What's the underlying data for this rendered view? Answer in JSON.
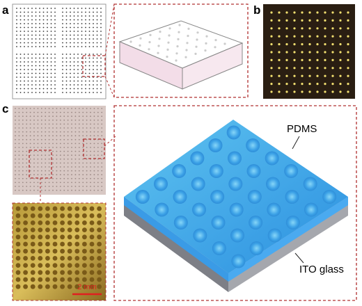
{
  "panels": [
    {
      "label": "a"
    },
    {
      "label": "b"
    },
    {
      "label": "c"
    }
  ],
  "annotations": {
    "top_layer": "PDMS",
    "substrate": "ITO glass"
  },
  "scale_bar": "2 mm"
}
